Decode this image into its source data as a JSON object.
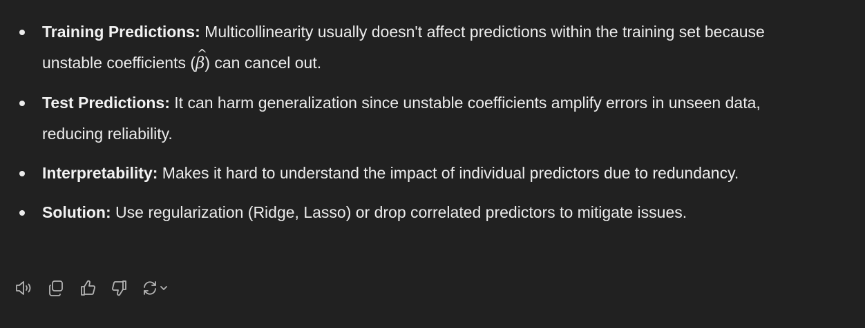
{
  "bullets": [
    {
      "term": "Training Predictions:",
      "text_before": " Multicollinearity usually doesn't affect predictions within the training set because unstable coefficients (",
      "math_symbol": "β",
      "math_hat": "^",
      "text_after": ") can cancel out."
    },
    {
      "term": "Test Predictions:",
      "text": " It can harm generalization since unstable coefficients amplify errors in unseen data, reducing reliability."
    },
    {
      "term": "Interpretability:",
      "text": " Makes it hard to understand the impact of individual predictors due to redundancy."
    },
    {
      "term": "Solution:",
      "text": " Use regularization (Ridge, Lasso) or drop correlated predictors to mitigate issues."
    }
  ],
  "actions": [
    {
      "icon": "speaker-icon"
    },
    {
      "icon": "copy-icon"
    },
    {
      "icon": "thumbs-up-icon"
    },
    {
      "icon": "thumbs-down-icon"
    },
    {
      "icon": "regenerate-icon"
    }
  ],
  "colors": {
    "background": "#212121",
    "text": "#ececec",
    "icon": "#b4b4b4"
  }
}
